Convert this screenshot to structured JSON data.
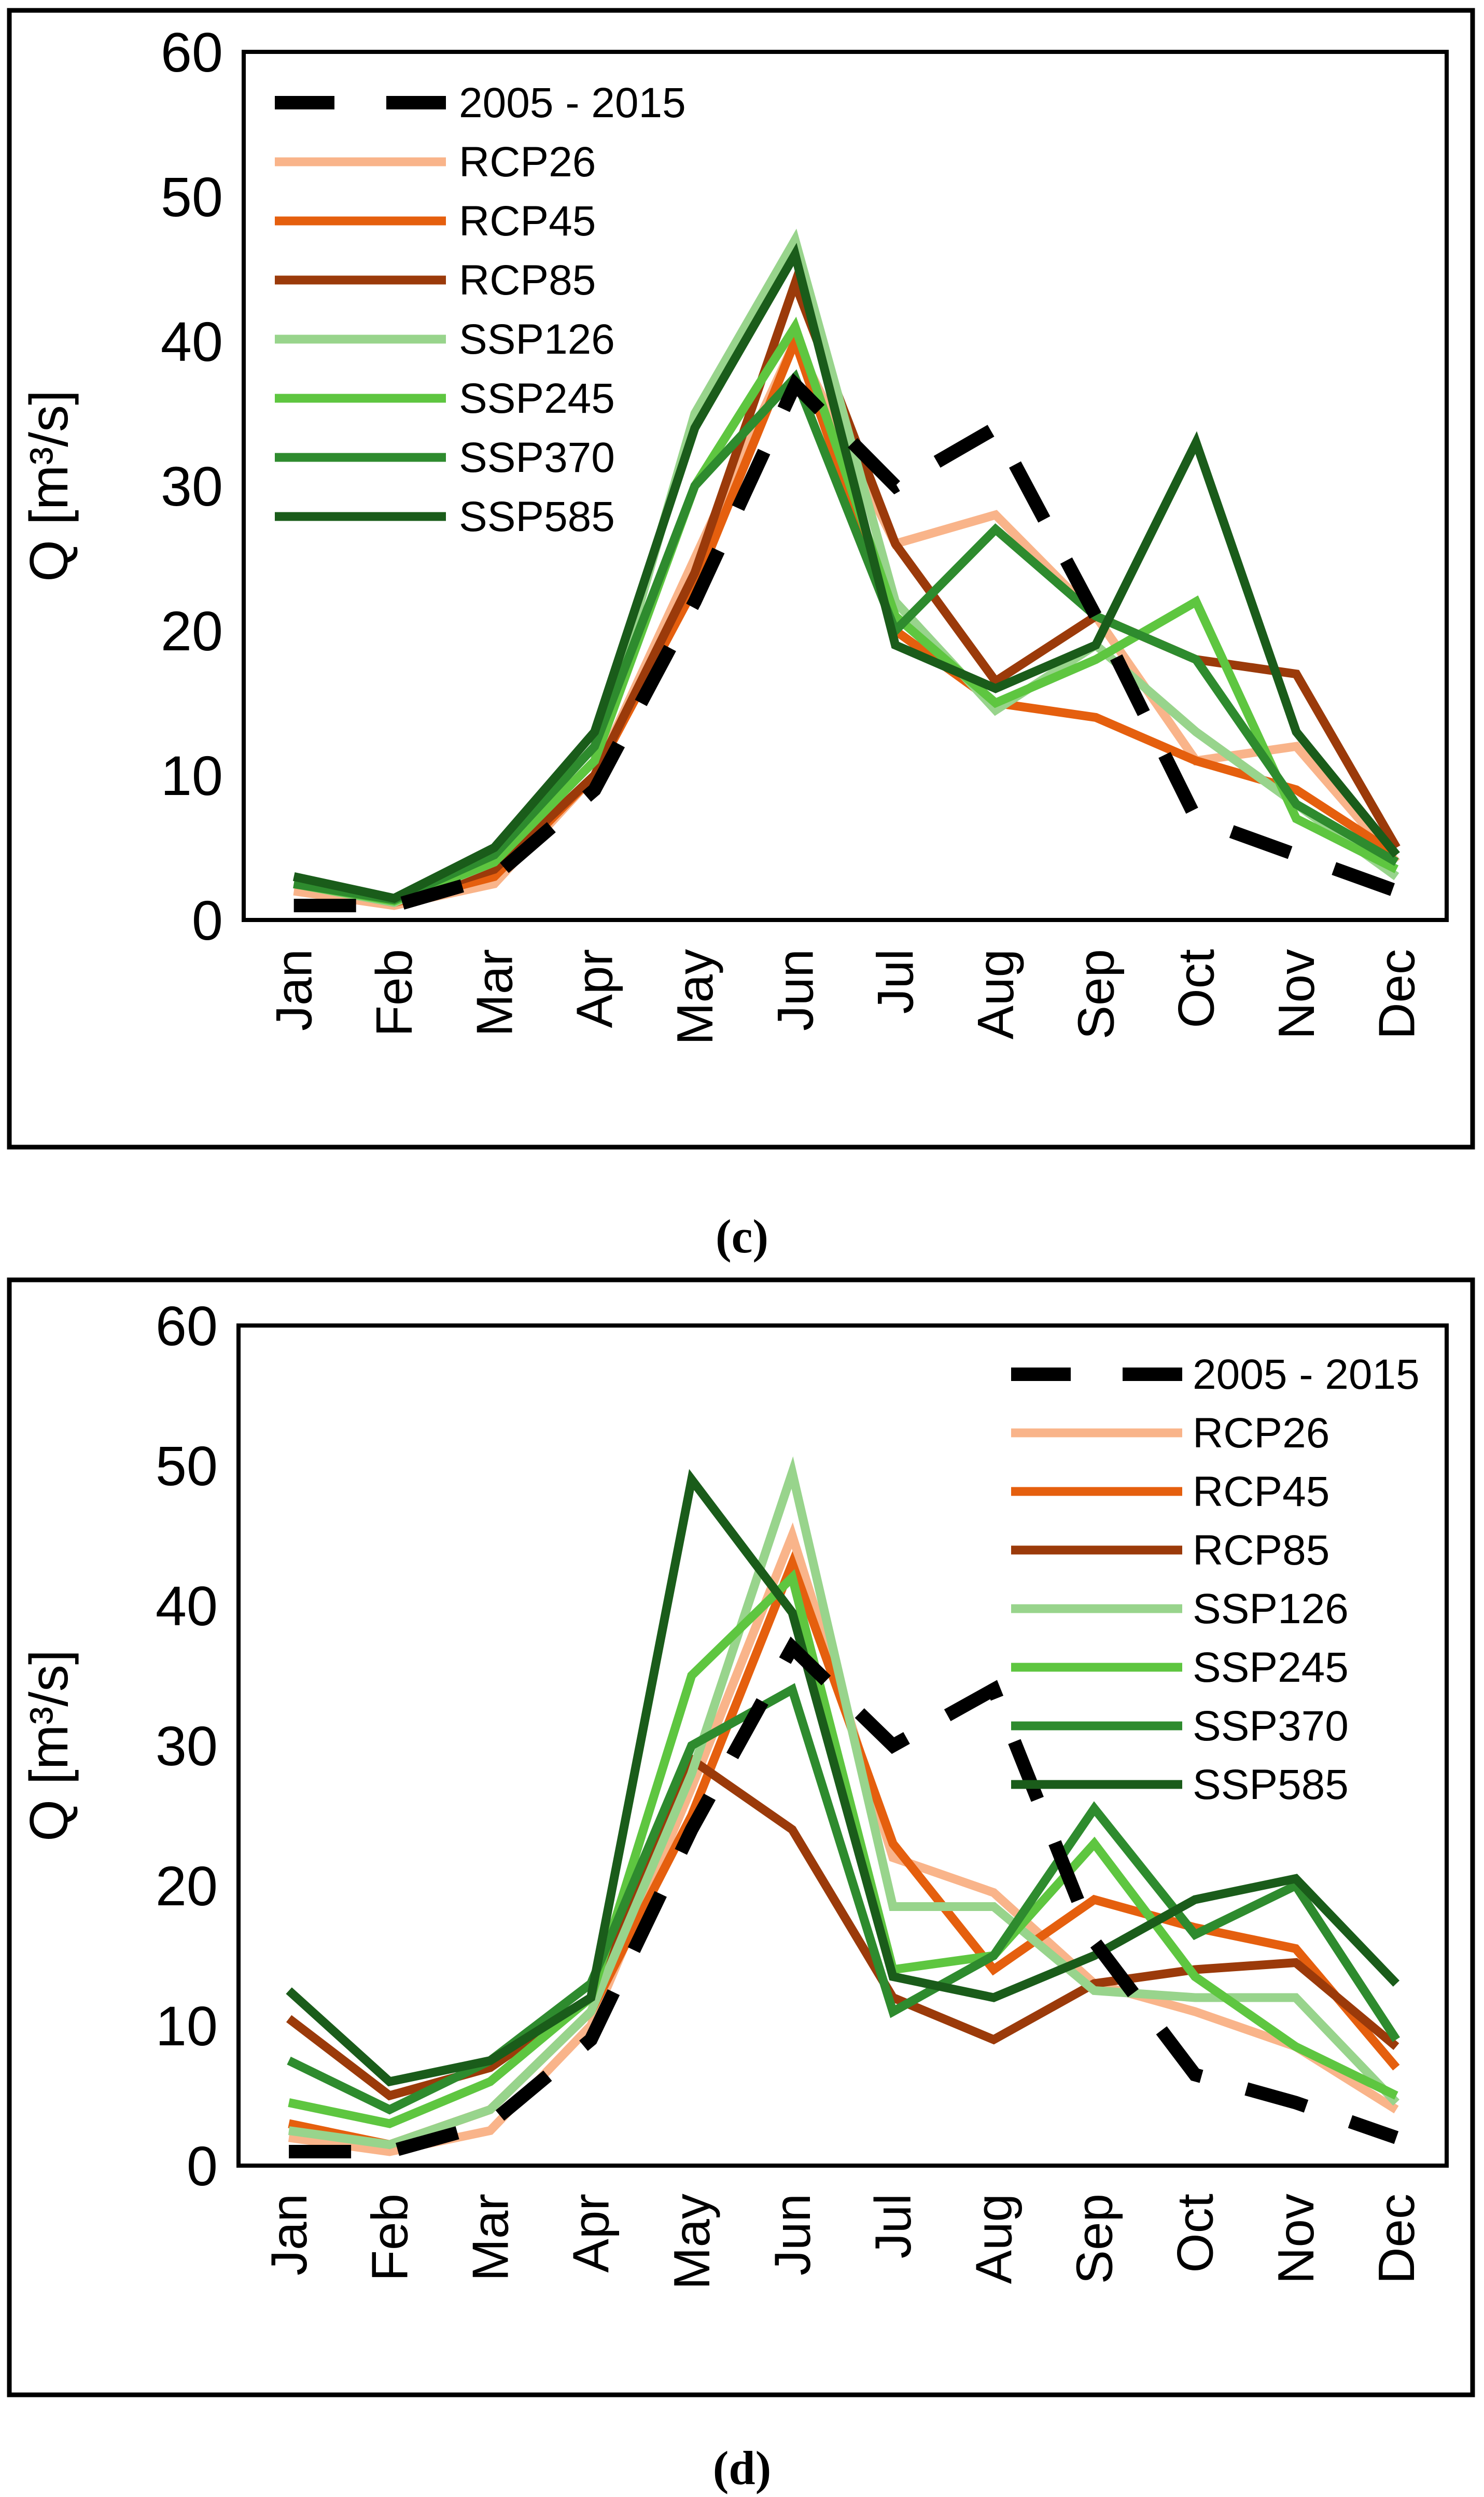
{
  "figure": {
    "panels": [
      {
        "label": "(c)"
      },
      {
        "label": "(d)"
      }
    ]
  },
  "chart_data": [
    {
      "type": "line",
      "title": "",
      "xlabel": "",
      "ylabel": "Q [m³/s]",
      "ylim": [
        0,
        60
      ],
      "yticks": [
        0,
        10,
        20,
        30,
        40,
        50,
        60
      ],
      "grid": false,
      "legend_position": "top-left",
      "categories": [
        "Jan",
        "Feb",
        "Mar",
        "Apr",
        "May",
        "Jun",
        "Jul",
        "Aug",
        "Sep",
        "Oct",
        "Nov",
        "Dec"
      ],
      "series": [
        {
          "name": "2005 - 2015",
          "color": "#000000",
          "dashed": true,
          "values": [
            1,
            1,
            3,
            9,
            22,
            37,
            30,
            34,
            21,
            7,
            4.5,
            2
          ]
        },
        {
          "name": "RCP26",
          "color": "#f9b48a",
          "dashed": false,
          "values": [
            2,
            1,
            2.5,
            10,
            25,
            40,
            26,
            28,
            21,
            11,
            12,
            4
          ]
        },
        {
          "name": "RCP45",
          "color": "#e55f0e",
          "dashed": false,
          "values": [
            2.5,
            1.2,
            3,
            10,
            23,
            40,
            20,
            15,
            14,
            11,
            9,
            4.5
          ]
        },
        {
          "name": "RCP85",
          "color": "#9b3a0a",
          "dashed": false,
          "values": [
            2.5,
            1.3,
            3.5,
            10,
            24,
            44,
            26,
            16.5,
            21,
            18,
            17,
            5
          ]
        },
        {
          "name": "SSP126",
          "color": "#98d48c",
          "dashed": false,
          "values": [
            2.5,
            1.2,
            4,
            11,
            35,
            47,
            22,
            14.5,
            19,
            13,
            8,
            3
          ]
        },
        {
          "name": "SSP245",
          "color": "#5ec640",
          "dashed": false,
          "values": [
            2.5,
            1.3,
            4,
            11,
            30,
            41,
            21,
            15,
            18,
            22,
            7,
            3.5
          ]
        },
        {
          "name": "SSP370",
          "color": "#2e8b2e",
          "dashed": false,
          "values": [
            2.5,
            1.4,
            4.5,
            12,
            30,
            37.5,
            20,
            27,
            21,
            18,
            8,
            4
          ]
        },
        {
          "name": "SSP585",
          "color": "#1a5c1a",
          "dashed": false,
          "values": [
            3,
            1.5,
            5,
            13,
            34,
            46,
            19,
            16,
            19,
            33,
            13,
            4.5
          ]
        }
      ]
    },
    {
      "type": "line",
      "title": "",
      "xlabel": "",
      "ylabel": "Q [m³/s]",
      "ylim": [
        0,
        60
      ],
      "yticks": [
        0,
        10,
        20,
        30,
        40,
        50,
        60
      ],
      "grid": false,
      "legend_position": "top-right",
      "categories": [
        "Jan",
        "Feb",
        "Mar",
        "Apr",
        "May",
        "Jun",
        "Jul",
        "Aug",
        "Sep",
        "Oct",
        "Nov",
        "Dec"
      ],
      "series": [
        {
          "name": "2005 - 2015",
          "color": "#000000",
          "dashed": true,
          "values": [
            1,
            1,
            3,
            9,
            24,
            37,
            30,
            34,
            16,
            6.5,
            4.5,
            2
          ]
        },
        {
          "name": "RCP26",
          "color": "#f9b48a",
          "dashed": false,
          "values": [
            2,
            1,
            2.5,
            10,
            27,
            45,
            22,
            19.5,
            13,
            11,
            8.5,
            4
          ]
        },
        {
          "name": "RCP45",
          "color": "#e55f0e",
          "dashed": false,
          "values": [
            3,
            1.5,
            4,
            11,
            25,
            43,
            23,
            14,
            19,
            17,
            15.5,
            7
          ]
        },
        {
          "name": "RCP85",
          "color": "#9b3a0a",
          "dashed": false,
          "values": [
            10.5,
            5,
            7,
            12,
            29,
            24,
            12,
            9,
            13,
            14,
            14.5,
            8.5
          ]
        },
        {
          "name": "SSP126",
          "color": "#98d48c",
          "dashed": false,
          "values": [
            2.5,
            1.5,
            4,
            11,
            28,
            49.5,
            18.5,
            18.5,
            12.5,
            12,
            12,
            4.5
          ]
        },
        {
          "name": "SSP245",
          "color": "#5ec640",
          "dashed": false,
          "values": [
            4.5,
            3,
            6,
            12,
            35,
            42,
            14,
            15,
            23,
            13.5,
            8.5,
            5
          ]
        },
        {
          "name": "SSP370",
          "color": "#2e8b2e",
          "dashed": false,
          "values": [
            7.5,
            4,
            7.5,
            13,
            30,
            34,
            11,
            15,
            25.5,
            16.5,
            20,
            9
          ]
        },
        {
          "name": "SSP585",
          "color": "#1a5c1a",
          "dashed": false,
          "values": [
            12.5,
            6,
            7.5,
            12,
            49,
            39.5,
            13.5,
            12,
            15,
            19,
            20.5,
            13
          ]
        }
      ]
    }
  ]
}
